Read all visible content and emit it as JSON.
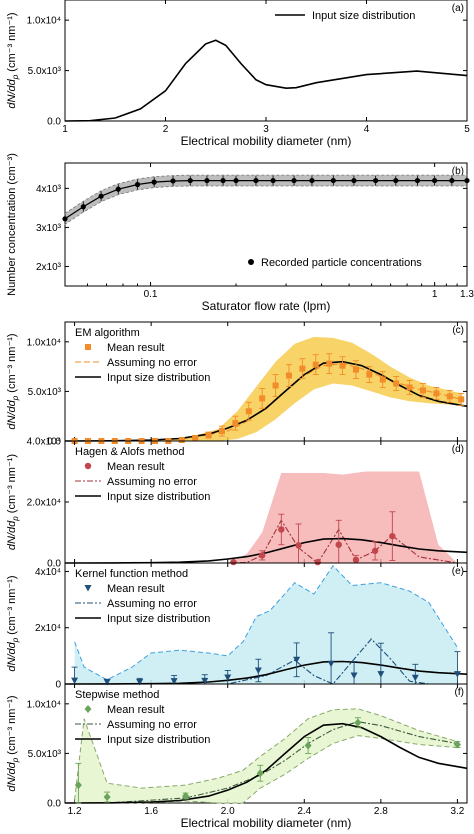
{
  "figure": {
    "bottom_xlabel": "Electrical mobility diameter (nm)"
  },
  "colors": {
    "em_band": "#f5c842",
    "em_marker": "#f28c28",
    "ha_band": "#f4a6a6",
    "ha_marker": "#c2464e",
    "ha_dash": "#a0323a",
    "kf_band": "#c8ecf2",
    "kf_marker": "#1d4f7a",
    "kf_dash": "#3da0e0",
    "sw_band": "#e6f5cf",
    "sw_marker": "#6aa35a",
    "sw_dash": "#8aa86a",
    "b_band": "#bdbdbd",
    "line": "#000000"
  },
  "chart_data": [
    {
      "id": "a",
      "type": "line",
      "panel_label": "(a)",
      "xlabel": "Electrical mobility diameter (nm)",
      "ylabel_main": "dN/dd",
      "ylabel_sub": "p",
      "ylabel_unit": " (cm⁻³ nm⁻¹)",
      "xlim": [
        1,
        5
      ],
      "ylim": [
        0,
        12000
      ],
      "xticks": [
        1,
        2,
        3,
        4,
        5
      ],
      "xtick_labels": [
        "1",
        "2",
        "3",
        "4",
        "5"
      ],
      "yticks": [
        0,
        5000,
        10000
      ],
      "ytick_labels": [
        "0.0",
        "5.0x10³",
        "1.0x10⁴"
      ],
      "legend": [
        "Input size distribution"
      ],
      "series": [
        {
          "name": "Input size distribution",
          "x": [
            1.0,
            1.25,
            1.5,
            1.75,
            2.0,
            2.2,
            2.4,
            2.5,
            2.6,
            2.75,
            2.9,
            3.0,
            3.2,
            3.3,
            3.5,
            4.0,
            4.5,
            5.0
          ],
          "y": [
            0,
            30,
            300,
            1200,
            3000,
            5700,
            7650,
            8000,
            7500,
            5700,
            4100,
            3600,
            3250,
            3300,
            3800,
            4600,
            4950,
            4500
          ]
        }
      ]
    },
    {
      "id": "b",
      "type": "scatter",
      "panel_label": "(b)",
      "xlabel": "Saturator flow rate (lpm)",
      "ylabel": "Number concentration (cm⁻³)",
      "xscale": "log",
      "xlim": [
        0.05,
        1.3
      ],
      "ylim": [
        1500,
        4650
      ],
      "xticks": [
        0.1,
        1,
        1.3
      ],
      "xtick_labels": [
        "0.1",
        "1",
        "1.3"
      ],
      "yticks": [
        2000,
        3000,
        4000
      ],
      "ytick_labels": [
        "2x10³",
        "3x10³",
        "4x10³"
      ],
      "legend": [
        "Recorded particle concentrations"
      ],
      "series": [
        {
          "name": "Recorded particle concentrations",
          "x": [
            0.05,
            0.058,
            0.067,
            0.077,
            0.09,
            0.103,
            0.12,
            0.138,
            0.158,
            0.18,
            0.2,
            0.235,
            0.27,
            0.32,
            0.37,
            0.44,
            0.52,
            0.62,
            0.73,
            0.87,
            1.0,
            1.15,
            1.3
          ],
          "y": [
            3220,
            3530,
            3800,
            3980,
            4100,
            4160,
            4190,
            4200,
            4200,
            4200,
            4200,
            4200,
            4200,
            4200,
            4200,
            4200,
            4200,
            4200,
            4200,
            4200,
            4200,
            4200,
            4200
          ]
        }
      ]
    },
    {
      "id": "c",
      "type": "line",
      "panel_label": "(c)",
      "ylabel_main": "dN/dd",
      "ylabel_sub": "p",
      "ylabel_unit": " (cm⁻³ nm⁻¹)",
      "xlim": [
        1.15,
        3.25
      ],
      "ylim": [
        0,
        12000
      ],
      "xticks": [
        1.2,
        1.6,
        2.0,
        2.4,
        2.8,
        3.2
      ],
      "yticks": [
        0,
        5000,
        10000
      ],
      "ytick_labels": [
        "0.0",
        "5.0x10³",
        "1.0x10⁴"
      ],
      "legend_title": "EM algorithm",
      "legend": [
        "Mean result",
        "Assuming no error",
        "Input size distribution"
      ],
      "series": [
        {
          "name": "Mean result",
          "x": [
            1.2,
            1.27,
            1.34,
            1.41,
            1.48,
            1.55,
            1.62,
            1.69,
            1.76,
            1.83,
            1.9,
            1.97,
            2.04,
            2.11,
            2.18,
            2.25,
            2.32,
            2.39,
            2.46,
            2.53,
            2.6,
            2.67,
            2.74,
            2.81,
            2.88,
            2.95,
            3.02,
            3.09,
            3.16,
            3.22
          ],
          "y": [
            0,
            0,
            0,
            0,
            0,
            0,
            0,
            0,
            100,
            300,
            600,
            1000,
            1800,
            3000,
            4300,
            5600,
            6600,
            7300,
            7700,
            7800,
            7600,
            7200,
            6700,
            6200,
            5800,
            5400,
            5100,
            4800,
            4500,
            4200
          ],
          "err": [
            0,
            0,
            0,
            0,
            0,
            0,
            0,
            0,
            50,
            150,
            300,
            500,
            700,
            900,
            1000,
            1100,
            1100,
            1000,
            1000,
            1000,
            900,
            900,
            800,
            800,
            700,
            700,
            700,
            600,
            600,
            600
          ]
        },
        {
          "name": "Assuming no error",
          "x": [
            1.2,
            1.5,
            1.8,
            2.0,
            2.1,
            2.2,
            2.3,
            2.4,
            2.5,
            2.6,
            2.7,
            2.8,
            2.9,
            3.0,
            3.1,
            3.22
          ],
          "y": [
            0,
            0,
            300,
            1000,
            2000,
            3400,
            5000,
            6600,
            7600,
            7800,
            7300,
            6500,
            5800,
            5200,
            4800,
            4200
          ]
        },
        {
          "name": "Input size distribution",
          "x": [
            1.15,
            1.4,
            1.6,
            1.75,
            1.9,
            2.0,
            2.1,
            2.2,
            2.3,
            2.4,
            2.5,
            2.6,
            2.7,
            2.8,
            2.9,
            3.0,
            3.1,
            3.25
          ],
          "y": [
            0,
            20,
            100,
            250,
            700,
            1300,
            2100,
            3300,
            5000,
            6700,
            7850,
            8000,
            7600,
            6700,
            5600,
            4600,
            4000,
            3500
          ]
        }
      ],
      "band": {
        "x": [
          1.2,
          1.6,
          1.8,
          1.95,
          2.05,
          2.15,
          2.25,
          2.35,
          2.45,
          2.55,
          2.65,
          2.75,
          2.85,
          2.95,
          3.05,
          3.22
        ],
        "lo": [
          0,
          0,
          0,
          0,
          200,
          900,
          2200,
          3800,
          5200,
          5800,
          5600,
          5000,
          4400,
          4000,
          3800,
          3600
        ],
        "hi": [
          0,
          0,
          400,
          1200,
          3000,
          5500,
          8000,
          9800,
          10500,
          10400,
          9900,
          8800,
          7500,
          6400,
          5600,
          4800
        ]
      }
    },
    {
      "id": "d",
      "type": "line",
      "panel_label": "(d)",
      "ylabel_main": "dN/dd",
      "ylabel_sub": "p",
      "ylabel_unit": " (cm⁻³ nm⁻¹)",
      "xlim": [
        1.15,
        3.25
      ],
      "ylim": [
        0,
        40000
      ],
      "xticks": [
        1.2,
        1.6,
        2.0,
        2.4,
        2.8,
        3.2
      ],
      "yticks": [
        0,
        20000,
        40000
      ],
      "ytick_labels": [
        "0.0",
        "2.0x10⁴",
        "4.0x10⁴"
      ],
      "legend_title": "Hagen & Alofs method",
      "legend": [
        "Mean result",
        "Assuming no error",
        "Input size distribution"
      ],
      "series": [
        {
          "name": "Mean result",
          "x": [
            2.03,
            2.18,
            2.28,
            2.37,
            2.47,
            2.58,
            2.67,
            2.77,
            2.86
          ],
          "y": [
            300,
            2500,
            11000,
            5800,
            300,
            6000,
            1000,
            4000,
            8800
          ],
          "err": [
            300,
            1500,
            5000,
            7000,
            300,
            8000,
            1500,
            3000,
            8000
          ]
        },
        {
          "name": "Assuming no error",
          "x": [
            2.0,
            2.1,
            2.18,
            2.28,
            2.37,
            2.47,
            2.58,
            2.67,
            2.77,
            2.86,
            3.0,
            3.2
          ],
          "y": [
            0,
            200,
            2500,
            14000,
            5000,
            0,
            11000,
            1000,
            4000,
            9000,
            2000,
            0
          ]
        },
        {
          "name": "Input size distribution",
          "x": [
            1.15,
            1.4,
            1.6,
            1.75,
            1.9,
            2.0,
            2.1,
            2.2,
            2.3,
            2.4,
            2.5,
            2.6,
            2.7,
            2.8,
            2.9,
            3.0,
            3.1,
            3.25
          ],
          "y": [
            0,
            20,
            100,
            250,
            700,
            1300,
            2100,
            3300,
            5000,
            6700,
            7850,
            8000,
            7600,
            6700,
            5600,
            4600,
            4000,
            3500
          ]
        }
      ],
      "band": {
        "x": [
          2.0,
          2.1,
          2.18,
          2.28,
          2.4,
          2.5,
          2.6,
          2.72,
          2.85,
          3.0,
          3.1,
          3.2
        ],
        "lo": [
          0,
          0,
          0,
          0,
          0,
          0,
          0,
          0,
          0,
          0,
          0,
          0
        ],
        "hi": [
          0,
          3000,
          10000,
          29500,
          29500,
          29500,
          29000,
          30000,
          30000,
          30000,
          6000,
          0
        ]
      }
    },
    {
      "id": "e",
      "type": "line",
      "panel_label": "(e)",
      "ylabel_main": "dN/dd",
      "ylabel_sub": "p",
      "ylabel_unit": " (cm⁻³ nm⁻¹)",
      "xlim": [
        1.15,
        3.25
      ],
      "ylim": [
        0,
        43000
      ],
      "xticks": [
        1.2,
        1.6,
        2.0,
        2.4,
        2.8,
        3.2
      ],
      "yticks": [
        0,
        20000,
        40000
      ],
      "ytick_labels": [
        "0",
        "2x10⁴",
        "4x10⁴"
      ],
      "legend_title": "Kernel function method",
      "legend": [
        "Mean result",
        "Assuming no error",
        "Input size distribution"
      ],
      "series": [
        {
          "name": "Mean result",
          "x": [
            1.2,
            1.37,
            1.54,
            1.72,
            1.88,
            2.0,
            2.16,
            2.36,
            2.54,
            2.66,
            2.8,
            2.98,
            3.2
          ],
          "y": [
            1200,
            700,
            700,
            1000,
            1100,
            2300,
            4800,
            8600,
            7200,
            3000,
            3500,
            2200,
            3500
          ],
          "err": [
            4800,
            1000,
            1300,
            2000,
            2200,
            2500,
            4000,
            6000,
            11000,
            5000,
            11000,
            4800,
            8000
          ]
        },
        {
          "name": "Assuming no error",
          "x": [
            1.2,
            1.3,
            1.4,
            1.6,
            1.8,
            2.0,
            2.2,
            2.35,
            2.45,
            2.55,
            2.65,
            2.75,
            2.85,
            2.95,
            3.05,
            3.2
          ],
          "y": [
            0,
            0,
            0,
            0,
            0,
            0,
            3000,
            8500,
            3000,
            0,
            8000,
            16000,
            9000,
            1000,
            0,
            0
          ]
        },
        {
          "name": "Input size distribution",
          "x": [
            1.15,
            1.4,
            1.6,
            1.75,
            1.9,
            2.0,
            2.1,
            2.2,
            2.3,
            2.4,
            2.5,
            2.6,
            2.7,
            2.8,
            2.9,
            3.0,
            3.1,
            3.25
          ],
          "y": [
            0,
            20,
            100,
            250,
            700,
            1300,
            2100,
            3300,
            5000,
            6700,
            7850,
            8000,
            7600,
            6700,
            5600,
            4600,
            4000,
            3500
          ]
        }
      ],
      "band": {
        "x": [
          1.2,
          1.25,
          1.37,
          1.5,
          1.6,
          1.75,
          1.9,
          2.0,
          2.08,
          2.15,
          2.22,
          2.35,
          2.45,
          2.55,
          2.65,
          2.8,
          2.95,
          3.05,
          3.2
        ],
        "lo": [
          0,
          0,
          0,
          0,
          0,
          0,
          0,
          0,
          0,
          0,
          0,
          0,
          0,
          0,
          0,
          0,
          0,
          0,
          0
        ],
        "hi": [
          15000,
          6000,
          1500,
          6000,
          11000,
          12000,
          11000,
          10000,
          15000,
          24000,
          26000,
          36000,
          32000,
          42000,
          35000,
          36000,
          33000,
          29000,
          13000
        ]
      }
    },
    {
      "id": "f",
      "type": "line",
      "panel_label": "(f)",
      "xlabel": "Electrical mobility diameter (nm)",
      "ylabel_main": "dN/dd",
      "ylabel_sub": "p",
      "ylabel_unit": " (cm⁻³ nm⁻¹)",
      "xlim": [
        1.15,
        3.25
      ],
      "ylim": [
        0,
        12000
      ],
      "xticks": [
        1.2,
        1.6,
        2.0,
        2.4,
        2.8,
        3.2
      ],
      "xtick_labels": [
        "1.2",
        "1.6",
        "2.0",
        "2.4",
        "2.8",
        "3.2"
      ],
      "yticks": [
        0,
        5000,
        10000
      ],
      "ytick_labels": [
        "0.0",
        "5.0x10³",
        "1.0x10⁴"
      ],
      "legend_title": "Stepwise method",
      "legend": [
        "Mean result",
        "Assuming no error",
        "Input size distribution"
      ],
      "series": [
        {
          "name": "Mean result",
          "x": [
            1.22,
            1.37,
            1.78,
            2.17,
            2.42,
            2.68,
            3.2
          ],
          "y": [
            1800,
            600,
            700,
            3000,
            5800,
            8100,
            5900
          ],
          "err": [
            2200,
            500,
            300,
            800,
            800,
            500,
            300
          ]
        },
        {
          "name": "Assuming no error",
          "x": [
            1.22,
            1.37,
            1.78,
            2.0,
            2.17,
            2.3,
            2.42,
            2.55,
            2.68,
            2.8,
            3.0,
            3.2
          ],
          "y": [
            0,
            0,
            500,
            1500,
            2800,
            4300,
            6000,
            7400,
            8200,
            7800,
            6700,
            6000
          ]
        },
        {
          "name": "Input size distribution",
          "x": [
            1.15,
            1.4,
            1.6,
            1.75,
            1.9,
            2.0,
            2.1,
            2.2,
            2.3,
            2.4,
            2.5,
            2.6,
            2.7,
            2.8,
            2.9,
            3.0,
            3.1,
            3.25
          ],
          "y": [
            0,
            20,
            100,
            250,
            700,
            1300,
            2100,
            3300,
            5000,
            6700,
            7850,
            8000,
            7600,
            6700,
            5600,
            4600,
            4000,
            3500
          ]
        }
      ],
      "band": {
        "x": [
          1.2,
          1.25,
          1.37,
          1.55,
          1.78,
          1.95,
          2.08,
          2.17,
          2.3,
          2.42,
          2.55,
          2.68,
          2.8,
          3.0,
          3.2
        ],
        "lo": [
          0,
          0,
          0,
          0,
          200,
          0,
          0,
          1500,
          2900,
          4500,
          6000,
          6800,
          6500,
          5900,
          5600
        ],
        "hi": [
          300,
          8500,
          2000,
          1500,
          1800,
          2500,
          3300,
          4700,
          6500,
          8500,
          9400,
          9500,
          8800,
          7300,
          6200
        ]
      }
    }
  ]
}
